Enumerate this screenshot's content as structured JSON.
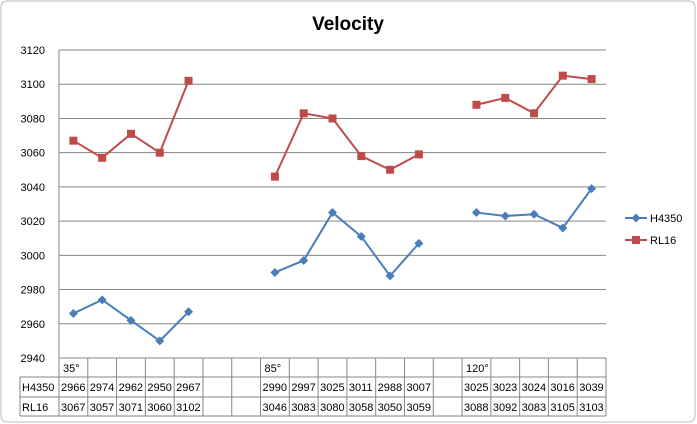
{
  "chart_data": {
    "type": "line",
    "title": "Velocity",
    "xlabel": "",
    "ylabel": "",
    "ylim": [
      2940,
      3120
    ],
    "yticks": [
      2940,
      2960,
      2980,
      3000,
      3020,
      3040,
      3060,
      3080,
      3100,
      3120
    ],
    "grid": true,
    "legend_placement": "right",
    "categories": [
      "35°",
      "",
      "",
      "",
      "",
      "",
      "",
      "85°",
      "",
      "",
      "",
      "",
      "",
      "",
      "120°",
      "",
      "",
      "",
      ""
    ],
    "series": [
      {
        "name": "H4350",
        "color": "#4a7ebb",
        "marker": "diamond",
        "values": [
          2966,
          2974,
          2962,
          2950,
          2967,
          null,
          null,
          2990,
          2997,
          3025,
          3011,
          2988,
          3007,
          null,
          3025,
          3023,
          3024,
          3016,
          3039
        ]
      },
      {
        "name": "RL16",
        "color": "#be4b48",
        "marker": "square",
        "values": [
          3067,
          3057,
          3071,
          3060,
          3102,
          null,
          null,
          3046,
          3083,
          3080,
          3058,
          3050,
          3059,
          null,
          3088,
          3092,
          3083,
          3105,
          3103
        ]
      }
    ]
  }
}
